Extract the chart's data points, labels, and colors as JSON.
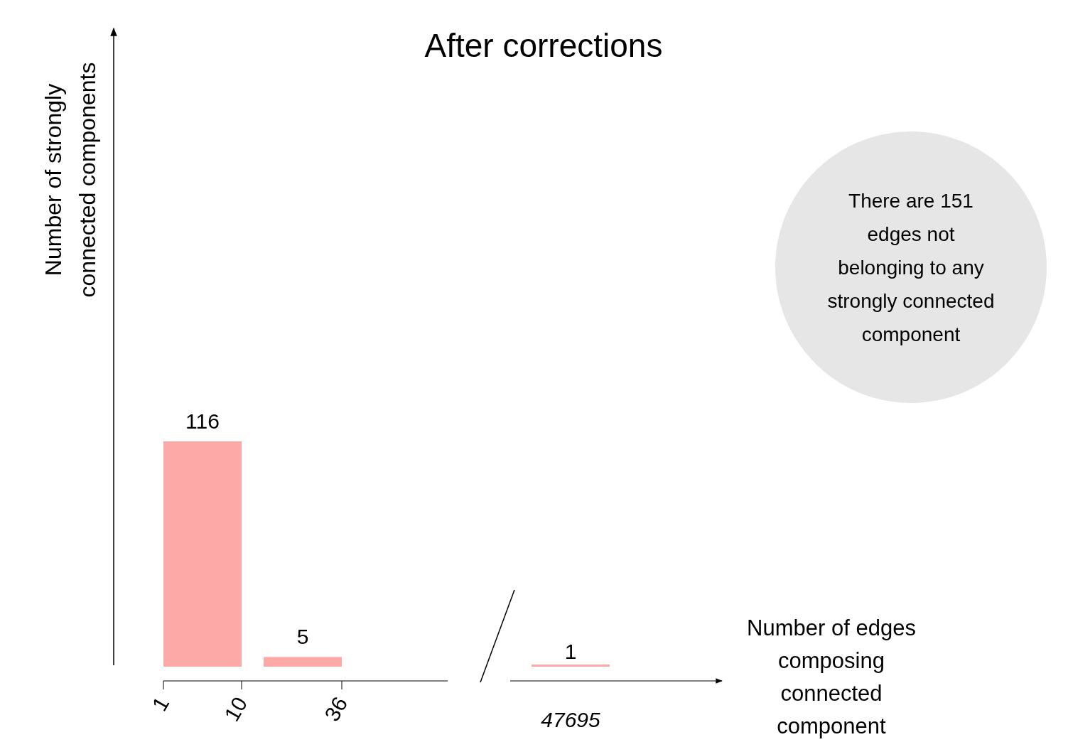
{
  "chart_data": {
    "type": "bar",
    "title": "After corrections",
    "categories": [
      null,
      null,
      "47695"
    ],
    "values": [
      116,
      5,
      1
    ],
    "color": "#fca9a7",
    "data_labels": true,
    "annotations": [
      "1",
      "10",
      "36",
      "There are 151 edges not belonging to any strongly connected component",
      "Number of strongly connected components",
      "Number of edges composing connected component"
    ]
  }
}
